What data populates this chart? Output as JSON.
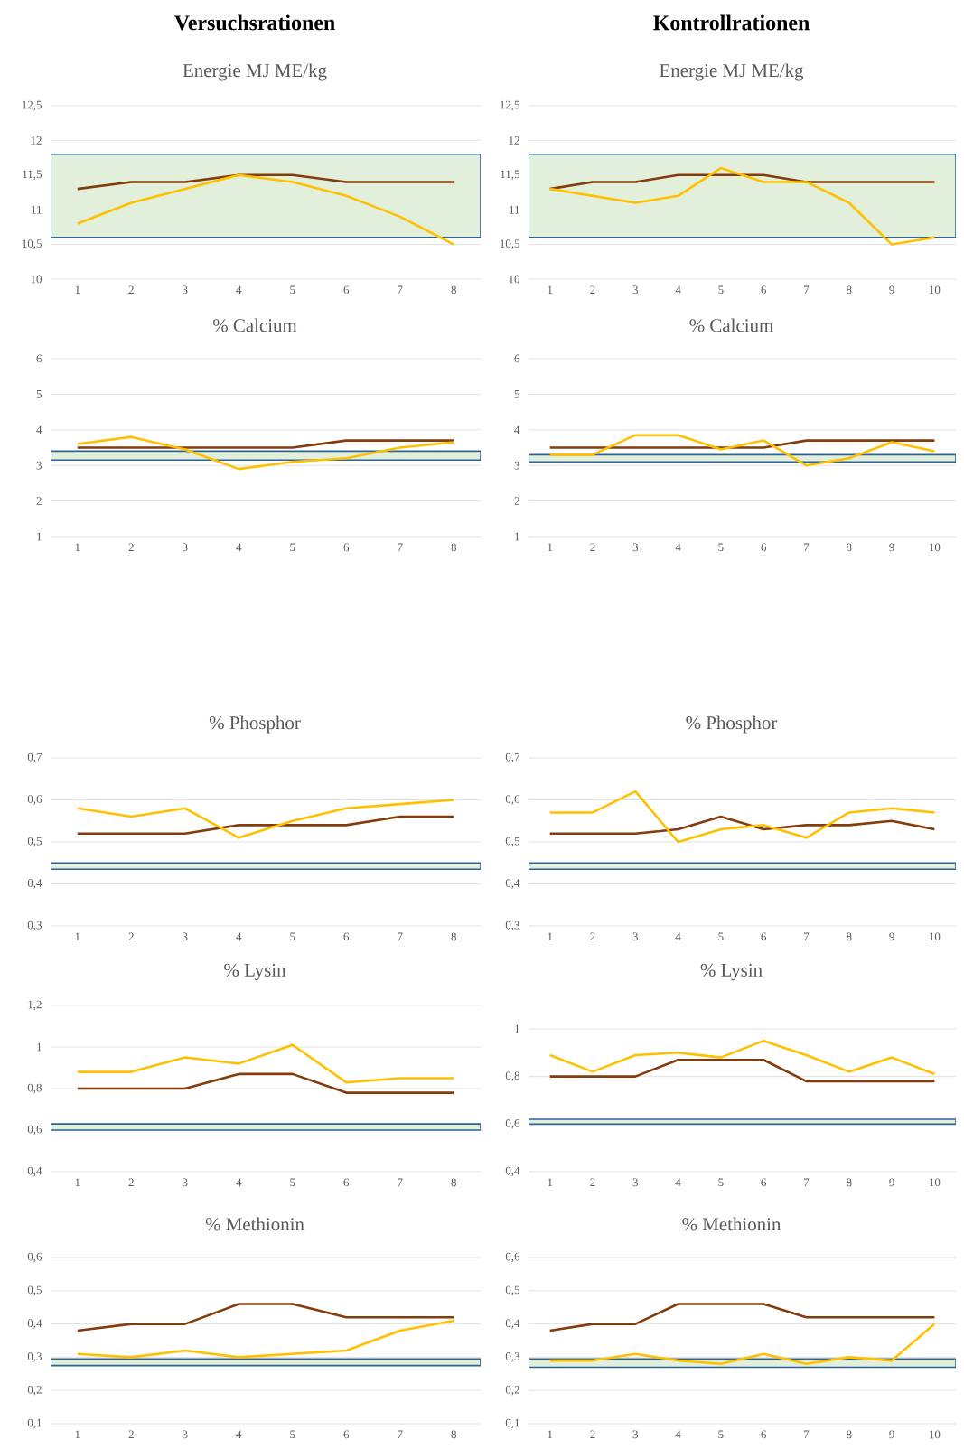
{
  "chart_data": [
    {
      "type": "line",
      "title": "Versuchsrationen",
      "subtitle": "Energie MJ ME/kg",
      "categories": [
        "1",
        "2",
        "3",
        "4",
        "5",
        "6",
        "7",
        "8"
      ],
      "series": [
        {
          "color": "#843c0c",
          "values": [
            11.3,
            11.4,
            11.4,
            11.5,
            11.5,
            11.4,
            11.4,
            11.4
          ]
        },
        {
          "color": "#ffc000",
          "values": [
            10.8,
            11.1,
            11.3,
            11.5,
            11.4,
            11.2,
            10.9,
            10.5
          ]
        }
      ],
      "ylim": [
        10,
        12.5
      ],
      "yticks": [
        10,
        {
          "value": 10.5,
          "label": "10,5"
        },
        11,
        {
          "value": 11.5,
          "label": "11,5"
        },
        12,
        {
          "value": 12.5,
          "label": "12,5"
        }
      ],
      "grid": "y",
      "bands": [
        {
          "axis": "y",
          "from": 10.6,
          "to": 11.8,
          "color": "#e2efda"
        }
      ]
    },
    {
      "type": "line",
      "title": "Kontrollrationen",
      "subtitle": "Energie MJ ME/kg",
      "categories": [
        "1",
        "2",
        "3",
        "4",
        "5",
        "6",
        "7",
        "8",
        "9",
        "10"
      ],
      "series": [
        {
          "color": "#843c0c",
          "values": [
            11.3,
            11.4,
            11.4,
            11.5,
            11.5,
            11.5,
            11.4,
            11.4,
            11.4,
            11.4
          ]
        },
        {
          "color": "#ffc000",
          "values": [
            11.3,
            11.2,
            11.1,
            11.2,
            11.6,
            11.4,
            11.4,
            11.1,
            10.5,
            10.6
          ]
        }
      ],
      "ylim": [
        10,
        12.5
      ],
      "yticks": [
        10,
        {
          "value": 10.5,
          "label": "10,5"
        },
        11,
        {
          "value": 11.5,
          "label": "11,5"
        },
        12,
        {
          "value": 12.5,
          "label": "12,5"
        }
      ],
      "grid": "y",
      "bands": [
        {
          "axis": "y",
          "from": 10.6,
          "to": 11.8,
          "color": "#e2efda"
        }
      ]
    },
    {
      "type": "line",
      "title": "% Calcium",
      "categories": [
        "1",
        "2",
        "3",
        "4",
        "5",
        "6",
        "7",
        "8"
      ],
      "series": [
        {
          "color": "#843c0c",
          "values": [
            3.5,
            3.5,
            3.5,
            3.5,
            3.5,
            3.7,
            3.7,
            3.7
          ]
        },
        {
          "color": "#ffc000",
          "values": [
            3.6,
            3.8,
            3.45,
            2.9,
            3.1,
            3.2,
            3.5,
            3.65
          ]
        }
      ],
      "ylim": [
        1,
        6
      ],
      "yticks": [
        1,
        2,
        3,
        4,
        5,
        6
      ],
      "grid": "y",
      "bands": [
        {
          "axis": "y",
          "from": 3.15,
          "to": 3.4,
          "color": "#e2efda"
        }
      ]
    },
    {
      "type": "line",
      "title": "% Calcium",
      "categories": [
        "1",
        "2",
        "3",
        "4",
        "5",
        "6",
        "7",
        "8",
        "9",
        "10"
      ],
      "series": [
        {
          "color": "#843c0c",
          "values": [
            3.5,
            3.5,
            3.5,
            3.5,
            3.5,
            3.5,
            3.7,
            3.7,
            3.7,
            3.7
          ]
        },
        {
          "color": "#ffc000",
          "values": [
            3.3,
            3.3,
            3.85,
            3.85,
            3.45,
            3.7,
            3.0,
            3.2,
            3.65,
            3.4
          ]
        }
      ],
      "ylim": [
        1,
        6
      ],
      "yticks": [
        1,
        2,
        3,
        4,
        5,
        6
      ],
      "grid": "y",
      "bands": [
        {
          "axis": "y",
          "from": 3.1,
          "to": 3.3,
          "color": "#e2efda"
        }
      ]
    },
    {
      "type": "line",
      "title": "% Phosphor",
      "categories": [
        "1",
        "2",
        "3",
        "4",
        "5",
        "6",
        "7",
        "8"
      ],
      "series": [
        {
          "color": "#843c0c",
          "values": [
            0.52,
            0.52,
            0.52,
            0.54,
            0.54,
            0.54,
            0.56,
            0.56
          ]
        },
        {
          "color": "#ffc000",
          "values": [
            0.58,
            0.56,
            0.58,
            0.51,
            0.55,
            0.58,
            0.59,
            0.6
          ]
        }
      ],
      "ylim": [
        0.3,
        0.7
      ],
      "yticks": [
        {
          "value": 0.3,
          "label": "0,3"
        },
        {
          "value": 0.4,
          "label": "0,4"
        },
        {
          "value": 0.5,
          "label": "0,5"
        },
        {
          "value": 0.6,
          "label": "0,6"
        },
        {
          "value": 0.7,
          "label": "0,7"
        }
      ],
      "grid": "y",
      "bands": [
        {
          "axis": "y",
          "from": 0.435,
          "to": 0.45,
          "color": "#e2efda"
        }
      ]
    },
    {
      "type": "line",
      "title": "% Phosphor",
      "categories": [
        "1",
        "2",
        "3",
        "4",
        "5",
        "6",
        "7",
        "8",
        "9",
        "10"
      ],
      "series": [
        {
          "color": "#843c0c",
          "values": [
            0.52,
            0.52,
            0.52,
            0.53,
            0.56,
            0.53,
            0.54,
            0.54,
            0.55,
            0.53
          ]
        },
        {
          "color": "#ffc000",
          "values": [
            0.57,
            0.57,
            0.62,
            0.5,
            0.53,
            0.54,
            0.51,
            0.57,
            0.58,
            0.57
          ]
        }
      ],
      "ylim": [
        0.3,
        0.7
      ],
      "yticks": [
        {
          "value": 0.3,
          "label": "0,3"
        },
        {
          "value": 0.4,
          "label": "0,4"
        },
        {
          "value": 0.5,
          "label": "0,5"
        },
        {
          "value": 0.6,
          "label": "0,6"
        },
        {
          "value": 0.7,
          "label": "0,7"
        }
      ],
      "grid": "y",
      "bands": [
        {
          "axis": "y",
          "from": 0.435,
          "to": 0.45,
          "color": "#e2efda"
        }
      ]
    },
    {
      "type": "line",
      "title": "% Lysin",
      "categories": [
        "1",
        "2",
        "3",
        "4",
        "5",
        "6",
        "7",
        "8"
      ],
      "series": [
        {
          "color": "#843c0c",
          "values": [
            0.8,
            0.8,
            0.8,
            0.87,
            0.87,
            0.78,
            0.78,
            0.78
          ]
        },
        {
          "color": "#ffc000",
          "values": [
            0.88,
            0.88,
            0.95,
            0.92,
            1.01,
            0.83,
            0.85,
            0.85
          ]
        }
      ],
      "ylim": [
        0.4,
        1.2
      ],
      "yticks": [
        {
          "value": 0.4,
          "label": "0,4"
        },
        {
          "value": 0.6,
          "label": "0,6"
        },
        {
          "value": 0.8,
          "label": "0,8"
        },
        1,
        {
          "value": 1.2,
          "label": "1,2"
        }
      ],
      "grid": "y",
      "bands": [
        {
          "axis": "y",
          "from": 0.6,
          "to": 0.63,
          "color": "#e2efda"
        }
      ]
    },
    {
      "type": "line",
      "title": "% Lysin",
      "categories": [
        "1",
        "2",
        "3",
        "4",
        "5",
        "6",
        "7",
        "8",
        "9",
        "10"
      ],
      "series": [
        {
          "color": "#843c0c",
          "values": [
            0.8,
            0.8,
            0.8,
            0.87,
            0.87,
            0.87,
            0.78,
            0.78,
            0.78,
            0.78
          ]
        },
        {
          "color": "#ffc000",
          "values": [
            0.89,
            0.82,
            0.89,
            0.9,
            0.88,
            0.95,
            0.89,
            0.82,
            0.88,
            0.81
          ]
        }
      ],
      "ylim": [
        0.4,
        1
      ],
      "yticks": [
        {
          "value": 0.4,
          "label": "0,4"
        },
        {
          "value": 0.6,
          "label": "0,6"
        },
        {
          "value": 0.8,
          "label": "0,8"
        },
        1
      ],
      "grid": "y",
      "bands": [
        {
          "axis": "y",
          "from": 0.6,
          "to": 0.62,
          "color": "#e2efda"
        }
      ]
    },
    {
      "type": "line",
      "title": "% Methionin",
      "categories": [
        "1",
        "2",
        "3",
        "4",
        "5",
        "6",
        "7",
        "8"
      ],
      "series": [
        {
          "color": "#843c0c",
          "values": [
            0.38,
            0.4,
            0.4,
            0.46,
            0.46,
            0.42,
            0.42,
            0.42
          ]
        },
        {
          "color": "#ffc000",
          "values": [
            0.31,
            0.3,
            0.32,
            0.3,
            0.31,
            0.32,
            0.38,
            0.41
          ]
        }
      ],
      "ylim": [
        0.1,
        0.6
      ],
      "yticks": [
        {
          "value": 0.1,
          "label": "0,1"
        },
        {
          "value": 0.2,
          "label": "0,2"
        },
        {
          "value": 0.3,
          "label": "0,3"
        },
        {
          "value": 0.4,
          "label": "0,4"
        },
        {
          "value": 0.5,
          "label": "0,5"
        },
        {
          "value": 0.6,
          "label": "0,6"
        }
      ],
      "grid": "y",
      "bands": [
        {
          "axis": "y",
          "from": 0.275,
          "to": 0.295,
          "color": "#e2efda"
        }
      ]
    },
    {
      "type": "line",
      "title": "% Methionin",
      "categories": [
        "1",
        "2",
        "3",
        "4",
        "5",
        "6",
        "7",
        "8",
        "9",
        "10"
      ],
      "series": [
        {
          "color": "#843c0c",
          "values": [
            0.38,
            0.4,
            0.4,
            0.46,
            0.46,
            0.46,
            0.42,
            0.42,
            0.42,
            0.42
          ]
        },
        {
          "color": "#ffc000",
          "values": [
            0.29,
            0.29,
            0.31,
            0.29,
            0.28,
            0.31,
            0.28,
            0.3,
            0.29,
            0.4
          ]
        }
      ],
      "ylim": [
        0.1,
        0.6
      ],
      "yticks": [
        {
          "value": 0.1,
          "label": "0,1"
        },
        {
          "value": 0.2,
          "label": "0,2"
        },
        {
          "value": 0.3,
          "label": "0,3"
        },
        {
          "value": 0.4,
          "label": "0,4"
        },
        {
          "value": 0.5,
          "label": "0,5"
        },
        {
          "value": 0.6,
          "label": "0,6"
        }
      ],
      "grid": "y",
      "bands": [
        {
          "axis": "y",
          "from": 0.27,
          "to": 0.295,
          "color": "#e2efda"
        }
      ]
    }
  ]
}
